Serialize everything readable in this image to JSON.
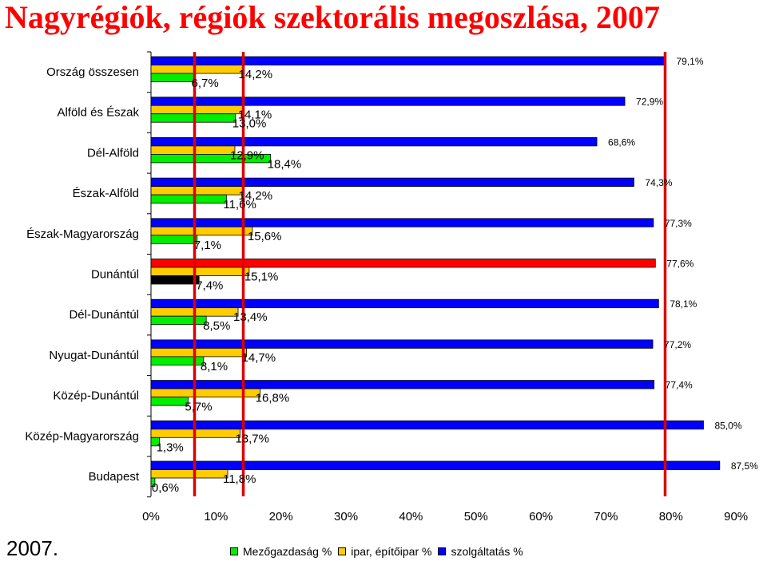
{
  "title": "Nagyrégiók, régiók szektorális megoszlása, 2007",
  "year_label": "2007.",
  "colors": {
    "agri": "#00ee00",
    "industry": "#ffcc00",
    "services": "#0000ff",
    "highlight_services": "#ff0000",
    "highlight_agri": "#000000",
    "ref_lines": "#dd0000"
  },
  "chart_data": {
    "type": "bar",
    "orientation": "horizontal",
    "categories": [
      "Ország összesen",
      "Alföld és Észak",
      "Dél-Alföld",
      "Észak-Alföld",
      "Észak-Magyarország",
      "Dunántúl",
      "Dél-Dunántúl",
      "Nyugat-Dunántúl",
      "Közép-Dunántúl",
      "Közép-Magyarország",
      "Budapest"
    ],
    "series": [
      {
        "name": "Mezőgazdaság %",
        "key": "agri",
        "values": [
          6.7,
          13.0,
          18.4,
          11.6,
          7.1,
          7.4,
          8.5,
          8.1,
          5.7,
          1.3,
          0.6
        ],
        "labels": [
          "6,7%",
          "13,0%",
          "18,4%",
          "11,6%",
          "7,1%",
          "7,4%",
          "8,5%",
          "8,1%",
          "5,7%",
          "1,3%",
          "0,6%"
        ]
      },
      {
        "name": "ipar, építőipar %",
        "key": "industry",
        "values": [
          14.2,
          14.1,
          12.9,
          14.2,
          15.6,
          15.1,
          13.4,
          14.7,
          16.8,
          13.7,
          11.8
        ],
        "labels": [
          "14,2%",
          "14,1%",
          "12,9%",
          "14,2%",
          "15,6%",
          "15,1%",
          "13,4%",
          "14,7%",
          "16,8%",
          "13,7%",
          "11,8%"
        ]
      },
      {
        "name": "szolgáltatás  %",
        "key": "services",
        "values": [
          79.1,
          72.9,
          68.6,
          74.3,
          77.3,
          77.6,
          78.1,
          77.2,
          77.4,
          85.0,
          87.5
        ],
        "labels": [
          "79,1%",
          "72,9%",
          "68,6%",
          "74,3%",
          "77,3%",
          "77,6%",
          "78,1%",
          "77,2%",
          "77,4%",
          "85,0%",
          "87,5%"
        ]
      }
    ],
    "highlighted_category": "Dunántúl",
    "reference_lines": [
      6.7,
      14.2,
      79.1
    ],
    "x_ticks": [
      "0%",
      "10%",
      "20%",
      "30%",
      "40%",
      "50%",
      "60%",
      "70%",
      "80%",
      "90%"
    ],
    "xlim": [
      0,
      90
    ],
    "legend_position": "bottom"
  }
}
